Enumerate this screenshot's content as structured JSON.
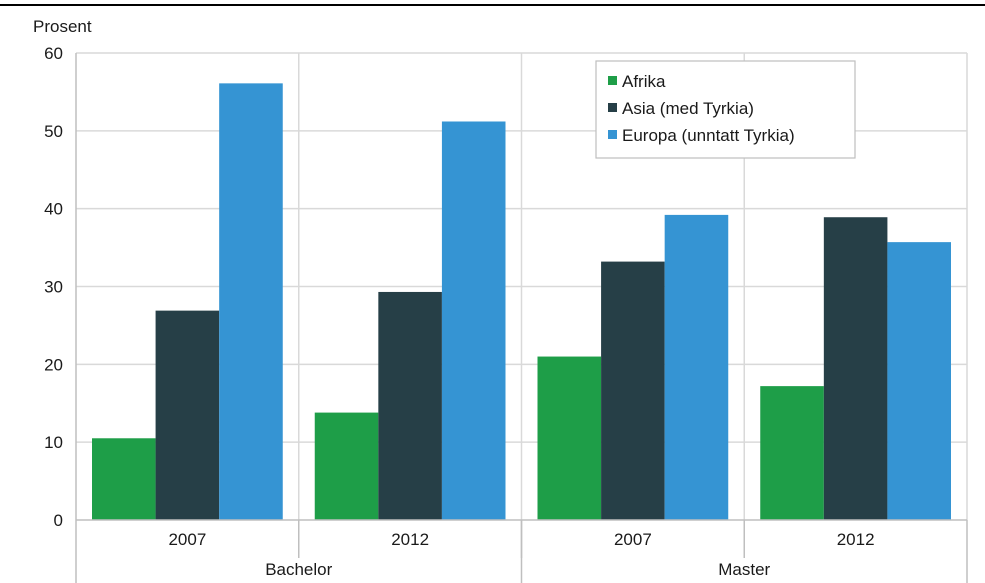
{
  "chart_data": {
    "type": "bar",
    "ylabel": "Prosent",
    "ylim": [
      0,
      60
    ],
    "yticks": [
      0,
      10,
      20,
      30,
      40,
      50,
      60
    ],
    "groups": [
      {
        "label": "Bachelor",
        "categories": [
          "2007",
          "2012"
        ]
      },
      {
        "label": "Master",
        "categories": [
          "2007",
          "2012"
        ]
      }
    ],
    "categories": [
      "2007",
      "2012",
      "2007",
      "2012"
    ],
    "series": [
      {
        "name": "Afrika",
        "color": "#1e9e48",
        "values": [
          10.5,
          13.8,
          21.0,
          17.2
        ]
      },
      {
        "name": "Asia (med Tyrkia)",
        "color": "#263f47",
        "values": [
          26.9,
          29.3,
          33.2,
          38.9
        ]
      },
      {
        "name": "Europa (unntatt Tyrkia)",
        "color": "#3594d3",
        "values": [
          56.1,
          51.2,
          39.2,
          35.7
        ]
      }
    ],
    "legend_position": "top-right",
    "grid": true
  }
}
